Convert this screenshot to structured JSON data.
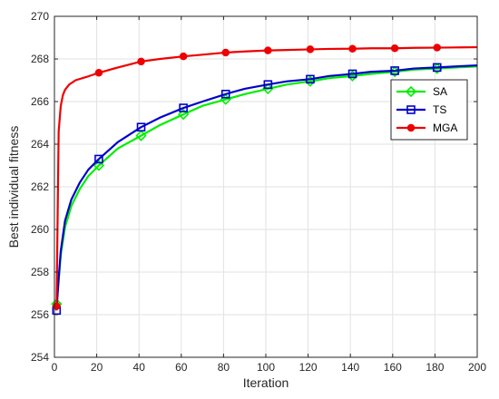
{
  "chart_data": {
    "type": "line",
    "xlabel": "Iteration",
    "ylabel": "Best individual fitness",
    "xlim": [
      0,
      200
    ],
    "ylim": [
      254,
      270
    ],
    "xticks": [
      0,
      20,
      40,
      60,
      80,
      100,
      120,
      140,
      160,
      180,
      200
    ],
    "yticks": [
      254,
      256,
      258,
      260,
      262,
      264,
      266,
      268,
      270
    ],
    "grid": true,
    "legend_position": "right",
    "series": [
      {
        "name": "SA",
        "color": "#00ee00",
        "marker": "diamond",
        "x": [
          1,
          2,
          3,
          5,
          8,
          12,
          16,
          21,
          30,
          41,
          50,
          61,
          70,
          81,
          90,
          101,
          110,
          121,
          130,
          141,
          150,
          161,
          170,
          181,
          190,
          200
        ],
        "y": [
          256.5,
          257.6,
          258.8,
          260.1,
          261.1,
          261.9,
          262.5,
          263.0,
          263.8,
          264.4,
          264.9,
          265.4,
          265.8,
          266.1,
          266.35,
          266.6,
          266.8,
          266.95,
          267.1,
          267.2,
          267.3,
          267.4,
          267.5,
          267.55,
          267.6,
          267.65
        ]
      },
      {
        "name": "TS",
        "color": "#0000cc",
        "marker": "square",
        "x": [
          1,
          2,
          3,
          5,
          8,
          12,
          16,
          21,
          30,
          41,
          50,
          61,
          70,
          81,
          90,
          101,
          110,
          121,
          130,
          141,
          150,
          161,
          170,
          181,
          190,
          200
        ],
        "y": [
          256.2,
          257.7,
          259.0,
          260.4,
          261.4,
          262.2,
          262.8,
          263.3,
          264.1,
          264.8,
          265.25,
          265.7,
          266.0,
          266.35,
          266.6,
          266.8,
          266.95,
          267.05,
          267.2,
          267.3,
          267.4,
          267.45,
          267.55,
          267.6,
          267.65,
          267.7
        ]
      },
      {
        "name": "MGA",
        "color": "#ee0000",
        "marker": "circle",
        "x": [
          1,
          2,
          3,
          4,
          5,
          7,
          10,
          15,
          21,
          30,
          41,
          50,
          61,
          70,
          81,
          90,
          101,
          110,
          121,
          130,
          141,
          150,
          161,
          170,
          181,
          190,
          200
        ],
        "y": [
          256.4,
          264.6,
          265.8,
          266.3,
          266.55,
          266.8,
          267.0,
          267.15,
          267.35,
          267.6,
          267.88,
          268.0,
          268.12,
          268.2,
          268.3,
          268.35,
          268.4,
          268.42,
          268.45,
          268.47,
          268.48,
          268.5,
          268.5,
          268.52,
          268.53,
          268.54,
          268.55
        ]
      }
    ],
    "markers_at": [
      1,
      21,
      41,
      61,
      81,
      101,
      121,
      141,
      161,
      181
    ]
  }
}
